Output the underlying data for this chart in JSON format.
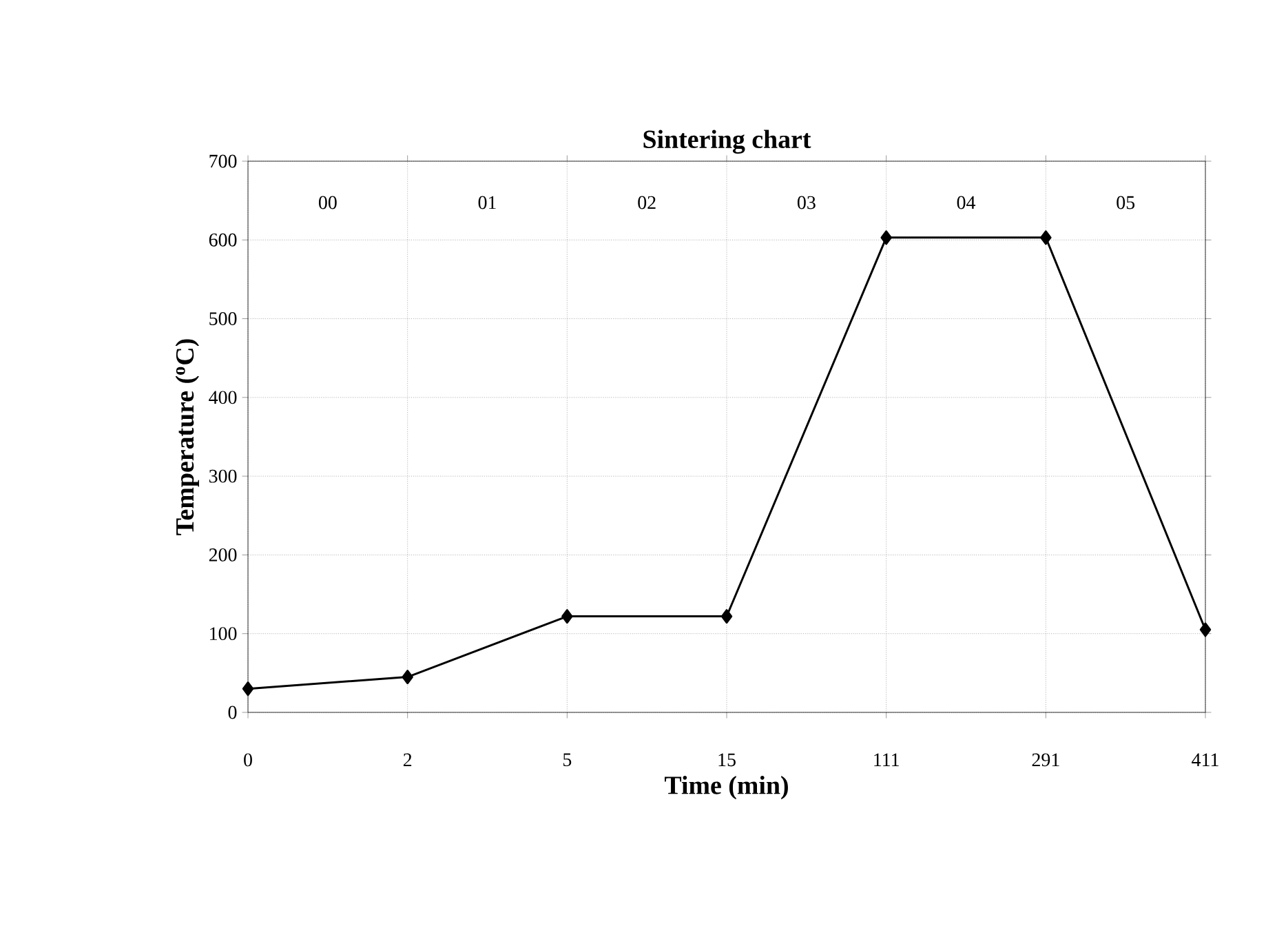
{
  "chart_data": {
    "type": "line",
    "title": "Sintering chart",
    "xlabel": "Time (min)",
    "ylabel": "Temperature ($^{o}$C)",
    "categories": [
      "0",
      "2",
      "5",
      "15",
      "111",
      "291",
      "411"
    ],
    "values": [
      30,
      45,
      122,
      122,
      603,
      603,
      105
    ],
    "color": "#000000",
    "marker": "diamond",
    "line_style": "solid",
    "ylim": [
      0,
      700
    ],
    "yticks": [
      0,
      100,
      200,
      300,
      400,
      500,
      600,
      700
    ],
    "grid": true,
    "annotations": [
      "00",
      "01",
      "02",
      "03",
      "04",
      "05"
    ]
  }
}
